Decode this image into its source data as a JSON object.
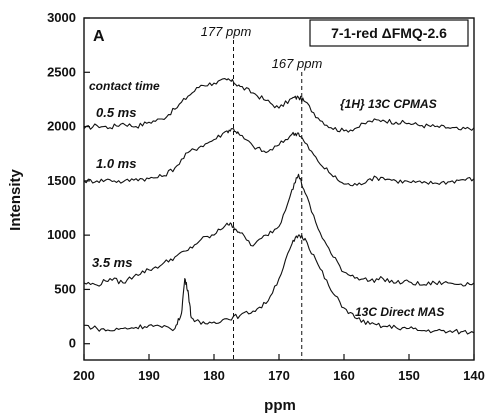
{
  "chart_data": {
    "type": "line",
    "panel_label": "A",
    "sample_label": "7-1-red ΔFMQ-2.6",
    "xlabel": "ppm",
    "ylabel": "Intensity",
    "xlim": [
      200,
      140
    ],
    "ylim": [
      -150,
      3000
    ],
    "x_reversed": true,
    "x_ticks": [
      200,
      190,
      180,
      170,
      160,
      150,
      140
    ],
    "y_ticks": [
      0,
      500,
      1000,
      1500,
      2000,
      2500,
      3000
    ],
    "reference_lines": [
      {
        "x": 177,
        "label": "177 ppm",
        "style": "dashed"
      },
      {
        "x": 166.5,
        "label": "167 ppm",
        "style": "dashed"
      }
    ],
    "annotations": {
      "contact_time_heading": "contact time",
      "cpmas_label": "{1H} 13C CPMAS",
      "direct_label": "13C Direct MAS"
    },
    "series": [
      {
        "name": "0.5 ms",
        "x": [
          200,
          198,
          196,
          194,
          192,
          190,
          188,
          186,
          184,
          182,
          180,
          178,
          177,
          176,
          174,
          172,
          170,
          168,
          167,
          166,
          164,
          162,
          160,
          158,
          156,
          154,
          152,
          150,
          148,
          146,
          144,
          142,
          140
        ],
        "y": [
          1980,
          2010,
          1990,
          2030,
          2000,
          2040,
          2070,
          2160,
          2280,
          2380,
          2400,
          2430,
          2410,
          2370,
          2310,
          2240,
          2170,
          2260,
          2270,
          2230,
          2080,
          1990,
          1960,
          1990,
          2050,
          2060,
          2040,
          2030,
          2010,
          2000,
          1990,
          1970,
          1990
        ]
      },
      {
        "name": "1.0 ms",
        "x": [
          200,
          198,
          196,
          194,
          192,
          190,
          188,
          186,
          184,
          182,
          180,
          178,
          177,
          176,
          174,
          172,
          170,
          168,
          167,
          166,
          164,
          162,
          160,
          158,
          156,
          154,
          152,
          150,
          148,
          146,
          144,
          142,
          140
        ],
        "y": [
          1500,
          1500,
          1510,
          1490,
          1520,
          1520,
          1540,
          1620,
          1760,
          1820,
          1880,
          1960,
          1980,
          1920,
          1820,
          1760,
          1830,
          1930,
          1940,
          1850,
          1680,
          1560,
          1470,
          1460,
          1520,
          1530,
          1500,
          1490,
          1480,
          1480,
          1490,
          1510,
          1520
        ]
      },
      {
        "name": "3.5 ms",
        "x": [
          200,
          198,
          196,
          194,
          192,
          190,
          188,
          186,
          184,
          182,
          180,
          178,
          177,
          176,
          174,
          172,
          170,
          168,
          167,
          166,
          164,
          162,
          160,
          158,
          156,
          154,
          152,
          150,
          148,
          146,
          144,
          142,
          140
        ],
        "y": [
          560,
          540,
          600,
          560,
          640,
          680,
          730,
          800,
          860,
          960,
          1000,
          1110,
          1080,
          1020,
          900,
          1000,
          1080,
          1420,
          1560,
          1390,
          1060,
          830,
          660,
          610,
          580,
          600,
          560,
          570,
          540,
          560,
          560,
          550,
          560
        ]
      },
      {
        "name": "13C Direct MAS",
        "x": [
          200,
          198,
          196,
          194,
          192,
          190,
          188,
          186,
          185,
          184.5,
          184,
          183.5,
          182,
          180,
          178,
          176,
          174,
          172,
          170,
          168,
          167,
          166,
          164,
          162,
          160,
          158,
          156,
          154,
          152,
          150,
          148,
          146,
          144,
          142,
          140
        ],
        "y": [
          170,
          140,
          120,
          140,
          150,
          170,
          150,
          140,
          280,
          600,
          490,
          240,
          180,
          200,
          230,
          260,
          300,
          370,
          600,
          920,
          1000,
          970,
          730,
          490,
          330,
          230,
          180,
          160,
          150,
          140,
          120,
          120,
          110,
          110,
          100
        ]
      }
    ]
  }
}
